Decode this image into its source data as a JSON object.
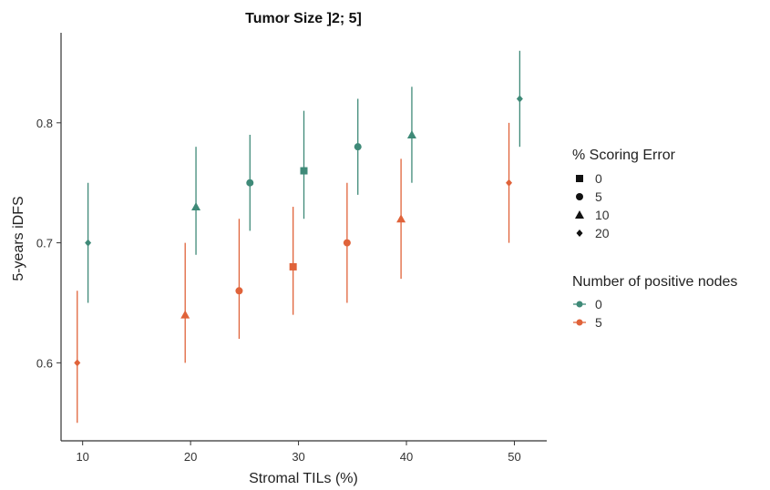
{
  "chart_data": {
    "type": "scatter",
    "title": "Tumor Size ]2; 5]",
    "xlabel": "Stromal TILs (%)",
    "ylabel": "5-years iDFS",
    "xlim": [
      8,
      53
    ],
    "ylim": [
      0.535,
      0.875
    ],
    "xticks": [
      "10",
      "20",
      "30",
      "40",
      "50"
    ],
    "yticks": [
      "0.6",
      "0.7",
      "0.8"
    ],
    "grid": false,
    "colors": {
      "0": "#3f8a78",
      "5": "#e0633a"
    },
    "legend_shape": {
      "title": "% Scoring Error",
      "entries": [
        {
          "label": "0",
          "shape": "square"
        },
        {
          "label": "5",
          "shape": "circle"
        },
        {
          "label": "10",
          "shape": "triangle"
        },
        {
          "label": "20",
          "shape": "diamond"
        }
      ]
    },
    "legend_color": {
      "title": "Number of positive nodes",
      "entries": [
        {
          "label": "0",
          "color": "#3f8a78"
        },
        {
          "label": "5",
          "color": "#e0633a"
        }
      ]
    },
    "series": [
      {
        "name": "0",
        "color": "#3f8a78",
        "points": [
          {
            "x": 10,
            "y": 0.7,
            "low": 0.65,
            "high": 0.75,
            "shape": "diamond"
          },
          {
            "x": 20,
            "y": 0.73,
            "low": 0.69,
            "high": 0.78,
            "shape": "triangle"
          },
          {
            "x": 25,
            "y": 0.75,
            "low": 0.71,
            "high": 0.79,
            "shape": "circle"
          },
          {
            "x": 30,
            "y": 0.76,
            "low": 0.72,
            "high": 0.81,
            "shape": "square"
          },
          {
            "x": 35,
            "y": 0.78,
            "low": 0.74,
            "high": 0.82,
            "shape": "circle"
          },
          {
            "x": 40,
            "y": 0.79,
            "low": 0.75,
            "high": 0.83,
            "shape": "triangle"
          },
          {
            "x": 50,
            "y": 0.82,
            "low": 0.78,
            "high": 0.86,
            "shape": "diamond"
          }
        ]
      },
      {
        "name": "5",
        "color": "#e0633a",
        "points": [
          {
            "x": 10,
            "y": 0.6,
            "low": 0.55,
            "high": 0.66,
            "shape": "diamond"
          },
          {
            "x": 20,
            "y": 0.64,
            "low": 0.6,
            "high": 0.7,
            "shape": "triangle"
          },
          {
            "x": 25,
            "y": 0.66,
            "low": 0.62,
            "high": 0.72,
            "shape": "circle"
          },
          {
            "x": 30,
            "y": 0.68,
            "low": 0.64,
            "high": 0.73,
            "shape": "square"
          },
          {
            "x": 35,
            "y": 0.7,
            "low": 0.65,
            "high": 0.75,
            "shape": "circle"
          },
          {
            "x": 40,
            "y": 0.72,
            "low": 0.67,
            "high": 0.77,
            "shape": "triangle"
          },
          {
            "x": 50,
            "y": 0.75,
            "low": 0.7,
            "high": 0.8,
            "shape": "diamond"
          }
        ]
      }
    ]
  }
}
